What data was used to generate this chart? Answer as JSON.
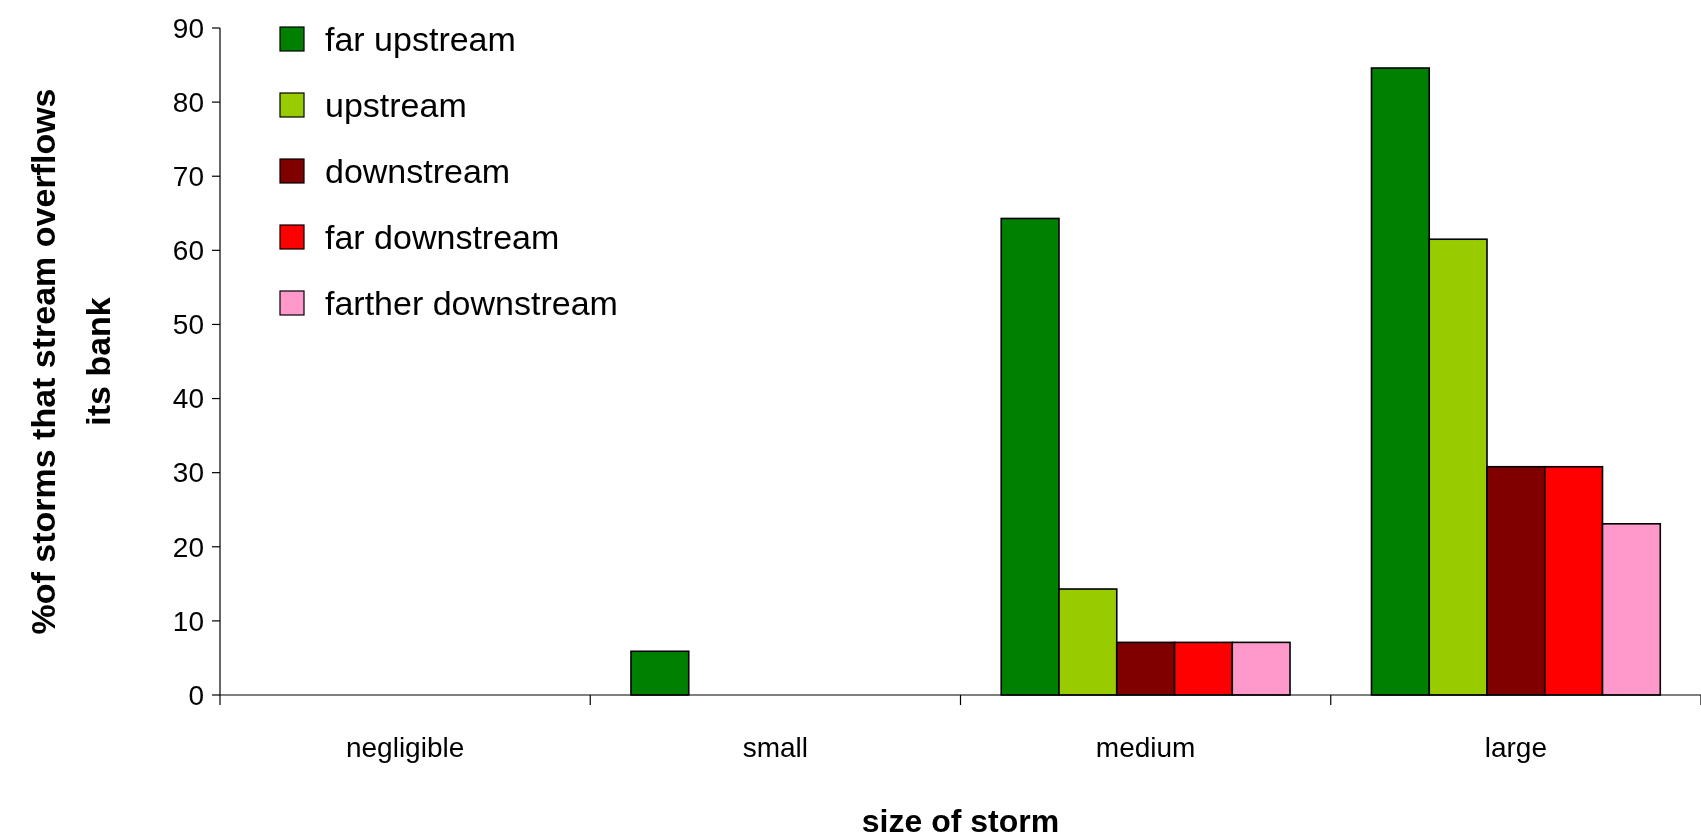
{
  "chart_data": {
    "type": "bar",
    "xlabel": "size of storm",
    "ylabel": "%of storms that stream overflows its bank",
    "categories": [
      "negligible",
      "small",
      "medium",
      "large"
    ],
    "series": [
      {
        "name": "far upstream",
        "color": "#008000",
        "values": [
          0,
          5.9,
          64.3,
          84.6
        ]
      },
      {
        "name": "upstream",
        "color": "#99cc00",
        "values": [
          0,
          0,
          14.3,
          61.5
        ]
      },
      {
        "name": "downstream",
        "color": "#800000",
        "values": [
          0,
          0,
          7.1,
          30.8
        ]
      },
      {
        "name": "far downstream",
        "color": "#ff0000",
        "values": [
          0,
          0,
          7.1,
          30.8
        ]
      },
      {
        "name": "farther downstream",
        "color": "#ff99cc",
        "values": [
          0,
          0,
          7.1,
          23.1
        ]
      }
    ],
    "ylim": [
      0,
      90
    ],
    "yticks": [
      0,
      10,
      20,
      30,
      40,
      50,
      60,
      70,
      80,
      90
    ],
    "grid": false,
    "legend": "top left"
  }
}
